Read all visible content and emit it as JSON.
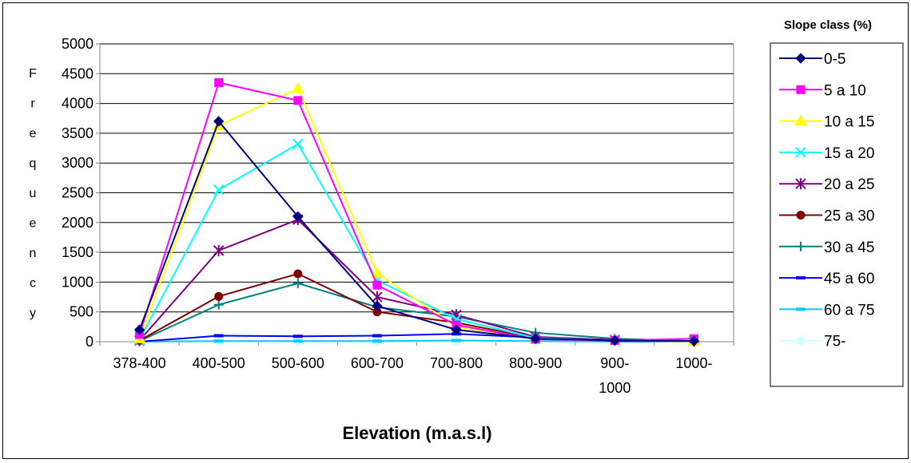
{
  "chart_data": {
    "type": "line",
    "xlabel": "Elevation (m.a.s.l)",
    "ylabel": "Frequency",
    "ylim": [
      0,
      5000
    ],
    "yticks": [
      0,
      500,
      1000,
      1500,
      2000,
      2500,
      3000,
      3500,
      4000,
      4500,
      5000
    ],
    "categories": [
      "378-400",
      "400-500",
      "500-600",
      "600-700",
      "700-800",
      "800-900",
      "900-1000",
      "1000-"
    ],
    "category_lines": [
      [
        "378-400"
      ],
      [
        "400-500"
      ],
      [
        "500-600"
      ],
      [
        "600-700"
      ],
      [
        "700-800"
      ],
      [
        "800-900"
      ],
      [
        "900-",
        "1000"
      ],
      [
        "1000-"
      ]
    ],
    "grid": "horizontal",
    "legend": {
      "title": "Slope class (%)",
      "position": "right"
    },
    "series": [
      {
        "name": "0-5",
        "color": "#000080",
        "marker": "diamond",
        "values": [
          200,
          3700,
          2100,
          600,
          200,
          50,
          20,
          10
        ]
      },
      {
        "name": "5 a 10",
        "color": "#ff00ff",
        "marker": "square",
        "values": [
          120,
          4350,
          4050,
          950,
          280,
          40,
          20,
          50
        ]
      },
      {
        "name": "10 a 15",
        "color": "#ffff00",
        "marker": "triangle",
        "values": [
          50,
          3630,
          4250,
          1150,
          250,
          40,
          20,
          0
        ]
      },
      {
        "name": "15 a 20",
        "color": "#00ffff",
        "marker": "x",
        "values": [
          30,
          2550,
          3320,
          1030,
          380,
          60,
          20,
          10
        ]
      },
      {
        "name": "20 a 25",
        "color": "#800080",
        "marker": "star",
        "values": [
          20,
          1530,
          2050,
          750,
          450,
          80,
          30,
          10
        ]
      },
      {
        "name": "25 a 30",
        "color": "#800000",
        "marker": "circle",
        "values": [
          20,
          760,
          1140,
          500,
          320,
          60,
          30,
          10
        ]
      },
      {
        "name": "30 a 45",
        "color": "#008080",
        "marker": "plus",
        "values": [
          10,
          620,
          980,
          580,
          420,
          150,
          50,
          10
        ]
      },
      {
        "name": "45 a 60",
        "color": "#0000ff",
        "marker": "dash",
        "values": [
          0,
          100,
          90,
          100,
          130,
          70,
          10,
          0
        ]
      },
      {
        "name": "60 a 75",
        "color": "#00ccff",
        "marker": "dash",
        "values": [
          0,
          10,
          10,
          10,
          20,
          10,
          0,
          0
        ]
      },
      {
        "name": "75-",
        "color": "#ccffff",
        "marker": "diamond",
        "values": [
          0,
          5,
          5,
          5,
          5,
          5,
          0,
          0
        ]
      }
    ]
  }
}
